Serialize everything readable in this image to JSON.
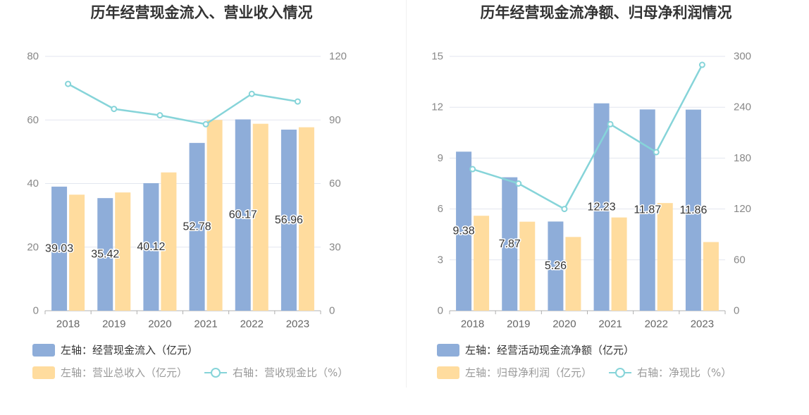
{
  "colors": {
    "bar_primary": "#8eadd9",
    "bar_secondary": "#ffdc9e",
    "line": "#86d4d9",
    "grid": "#e3e6ef",
    "axis": "#b0b0b0",
    "legend_text_primary": "#333333",
    "legend_text_muted": "#999999"
  },
  "chart_data": [
    {
      "type": "bar",
      "title": "历年经营现金流入、营业收入情况",
      "categories": [
        "2018",
        "2019",
        "2020",
        "2021",
        "2022",
        "2023"
      ],
      "left_axis": {
        "ylim": [
          0,
          80
        ],
        "ticks": [
          "0",
          "20",
          "40",
          "60",
          "80"
        ]
      },
      "right_axis": {
        "ylim": [
          0,
          120
        ],
        "ticks": [
          "0",
          "30",
          "60",
          "90",
          "120"
        ]
      },
      "grid": true,
      "legend_position": "bottom-left",
      "series": [
        {
          "name": "左轴：经营现金流入（亿元）",
          "type": "bar",
          "axis": "left",
          "values": [
            39.03,
            35.42,
            40.12,
            52.78,
            60.17,
            56.96
          ],
          "labels": [
            "39.03",
            "35.42",
            "40.12",
            "52.78",
            "60.17",
            "56.96"
          ]
        },
        {
          "name": "左轴：营业总收入（亿元）",
          "type": "bar",
          "axis": "left",
          "values": [
            36.5,
            37.2,
            43.5,
            60.0,
            58.8,
            57.7
          ]
        },
        {
          "name": "右轴：营收现金比（%）",
          "type": "line",
          "axis": "right",
          "values": [
            107.0,
            95.2,
            92.2,
            88.0,
            102.3,
            98.7
          ]
        }
      ]
    },
    {
      "type": "bar",
      "title": "历年经营现金流净额、归母净利润情况",
      "categories": [
        "2018",
        "2019",
        "2020",
        "2021",
        "2022",
        "2023"
      ],
      "left_axis": {
        "ylim": [
          0,
          15
        ],
        "ticks": [
          "0",
          "3",
          "6",
          "9",
          "12",
          "15"
        ]
      },
      "right_axis": {
        "ylim": [
          0,
          300
        ],
        "ticks": [
          "0",
          "60",
          "120",
          "180",
          "240",
          "300"
        ]
      },
      "grid": true,
      "legend_position": "bottom-left",
      "series": [
        {
          "name": "左轴：经营活动现金流净额（亿元）",
          "type": "bar",
          "axis": "left",
          "values": [
            9.38,
            7.87,
            5.26,
            12.23,
            11.87,
            11.86
          ],
          "labels": [
            "9.38",
            "7.87",
            "5.26",
            "12.23",
            "11.87",
            "11.86"
          ]
        },
        {
          "name": "左轴：归母净利润（亿元）",
          "type": "bar",
          "axis": "left",
          "values": [
            5.6,
            5.25,
            4.35,
            5.5,
            6.35,
            4.05
          ]
        },
        {
          "name": "右轴：净现比（%）",
          "type": "line",
          "axis": "right",
          "values": [
            167,
            150,
            120,
            220,
            187,
            290
          ]
        }
      ]
    }
  ]
}
